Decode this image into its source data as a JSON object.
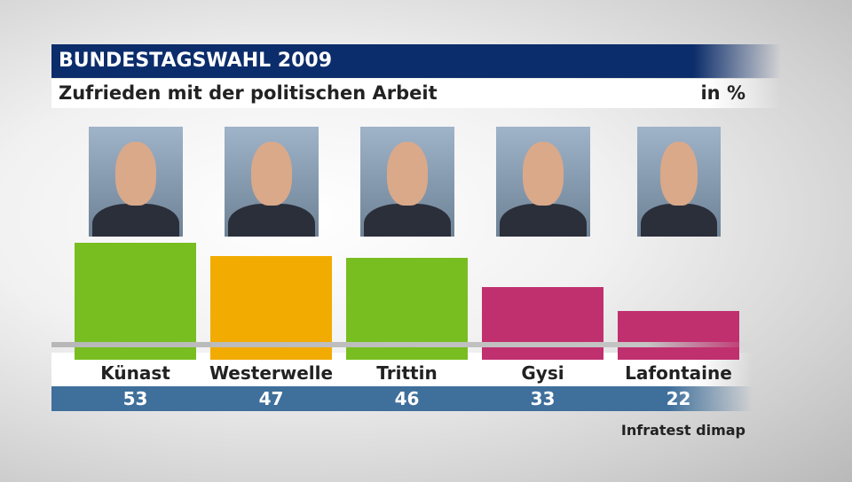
{
  "header": {
    "title": "BUNDESTAGSWAHL 2009",
    "subtitle": "Zufrieden mit der politischen Arbeit",
    "unit": "in %"
  },
  "source": "Infratest dimap",
  "chart_data": {
    "type": "bar",
    "title": "Zufrieden mit der politischen Arbeit",
    "ylabel": "in %",
    "categories": [
      "Künast",
      "Westerwelle",
      "Trittin",
      "Gysi",
      "Lafontaine"
    ],
    "values": [
      53,
      47,
      46,
      33,
      22
    ],
    "value_labels": [
      "53",
      "47",
      "46",
      "33",
      "22"
    ],
    "colors": [
      "#78be20",
      "#f2ab00",
      "#78be20",
      "#c0306f",
      "#c0306f"
    ],
    "photo_icons": [
      "person-photo-icon",
      "person-photo-icon",
      "person-photo-icon",
      "person-photo-icon",
      "person-photo-icon"
    ],
    "ylim": [
      0,
      53
    ],
    "grid": false,
    "legend": "none"
  }
}
